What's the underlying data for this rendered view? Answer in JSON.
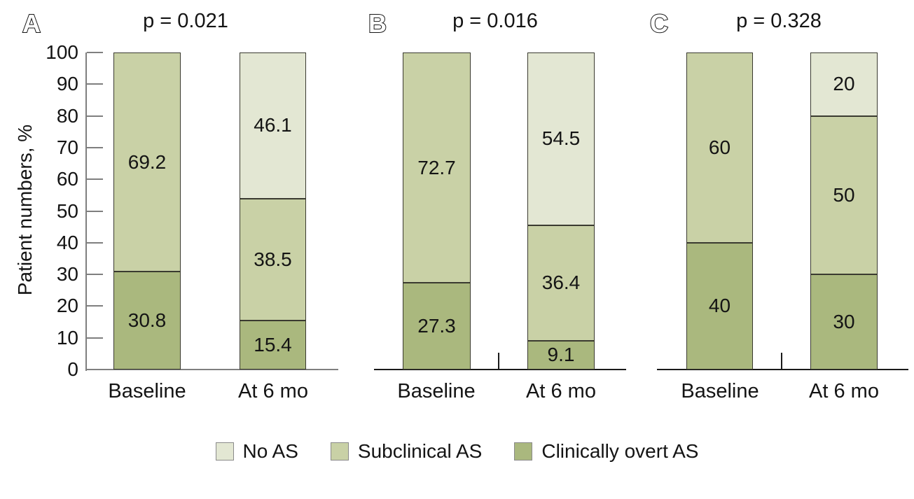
{
  "axes": {
    "y_title": "Patient numbers, %",
    "y_ticks": [
      0,
      10,
      20,
      30,
      40,
      50,
      60,
      70,
      80,
      90,
      100
    ],
    "ylim": [
      0,
      100
    ],
    "categories": [
      "Baseline",
      "At 6 mo"
    ]
  },
  "legend": {
    "items": [
      {
        "label": "No AS",
        "color": "#e3e7d3"
      },
      {
        "label": "Subclinical AS",
        "color": "#c9d1a6"
      },
      {
        "label": "Clinically overt AS",
        "color": "#aab87e"
      }
    ]
  },
  "colors": {
    "no_as": "#e3e7d3",
    "subclinical_as": "#c9d1a6",
    "clinically_overt_as": "#aab87e",
    "segment_border": "#3a3a30",
    "axis_gray": "#7f7f7f",
    "axis_black": "#1a1a1a",
    "text": "#141414"
  },
  "chart_data": [
    {
      "type": "bar",
      "stacked": true,
      "panel_label": "A",
      "p_value": "p = 0.021",
      "categories": [
        "Baseline",
        "At 6 mo"
      ],
      "ylabel": "Patient numbers, %",
      "ylim": [
        0,
        100
      ],
      "series": [
        {
          "name": "Clinically overt AS",
          "color": "#aab87e",
          "values": [
            30.8,
            15.4
          ],
          "labels": [
            "30.8",
            "15.4"
          ]
        },
        {
          "name": "Subclinical AS",
          "color": "#c9d1a6",
          "values": [
            69.2,
            38.5
          ],
          "labels": [
            "69.2",
            "38.5"
          ]
        },
        {
          "name": "No AS",
          "color": "#e3e7d3",
          "values": [
            0,
            46.1
          ],
          "labels": [
            "",
            "46.1"
          ]
        }
      ]
    },
    {
      "type": "bar",
      "stacked": true,
      "panel_label": "B",
      "p_value": "p = 0.016",
      "categories": [
        "Baseline",
        "At 6 mo"
      ],
      "ylabel": "Patient numbers, %",
      "ylim": [
        0,
        100
      ],
      "series": [
        {
          "name": "Clinically overt AS",
          "color": "#aab87e",
          "values": [
            27.3,
            9.1
          ],
          "labels": [
            "27.3",
            "9.1"
          ]
        },
        {
          "name": "Subclinical AS",
          "color": "#c9d1a6",
          "values": [
            72.7,
            36.4
          ],
          "labels": [
            "72.7",
            "36.4"
          ]
        },
        {
          "name": "No AS",
          "color": "#e3e7d3",
          "values": [
            0,
            54.5
          ],
          "labels": [
            "",
            "54.5"
          ]
        }
      ]
    },
    {
      "type": "bar",
      "stacked": true,
      "panel_label": "C",
      "p_value": "p = 0.328",
      "categories": [
        "Baseline",
        "At 6 mo"
      ],
      "ylabel": "Patient numbers, %",
      "ylim": [
        0,
        100
      ],
      "series": [
        {
          "name": "Clinically overt AS",
          "color": "#aab87e",
          "values": [
            40,
            30
          ],
          "labels": [
            "40",
            "30"
          ]
        },
        {
          "name": "Subclinical AS",
          "color": "#c9d1a6",
          "values": [
            60,
            50
          ],
          "labels": [
            "60",
            "50"
          ]
        },
        {
          "name": "No AS",
          "color": "#e3e7d3",
          "values": [
            0,
            20
          ],
          "labels": [
            "",
            "20"
          ]
        }
      ]
    }
  ]
}
